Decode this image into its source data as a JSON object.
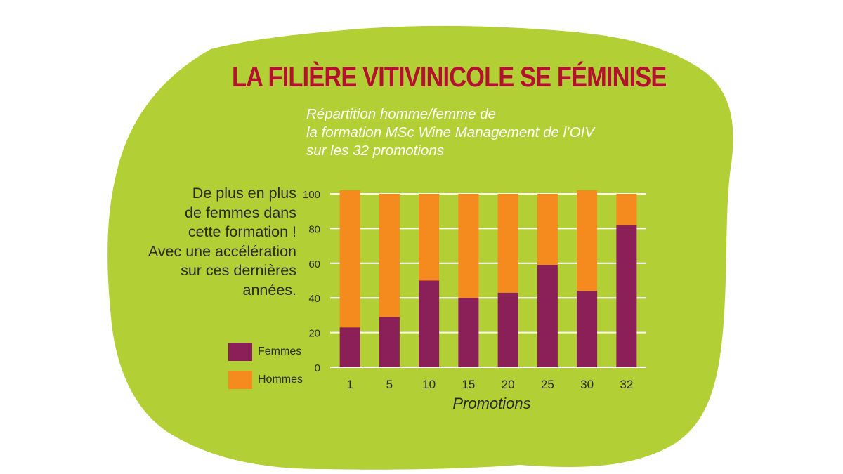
{
  "title": "LA FILIÈRE VITIVINICOLE SE FÉMINISE",
  "subtitle_lines": [
    "Répartition homme/femme de",
    "la formation MSc Wine Management de l’OIV",
    "sur les 32 promotions"
  ],
  "side_note_lines": [
    "De plus en plus",
    "de femmes dans",
    "cette formation !",
    "Avec une accélération",
    "sur ces dernières",
    "années."
  ],
  "colors": {
    "background_blob": "#b2cf36",
    "title": "#b3122e",
    "femmes": "#8b1f57",
    "hommes": "#f58a1f",
    "grid": "#ffffff"
  },
  "chart_data": {
    "type": "bar",
    "stacked": true,
    "categories": [
      "1",
      "5",
      "10",
      "15",
      "20",
      "25",
      "30",
      "32"
    ],
    "series": [
      {
        "name": "Femmes",
        "values": [
          23,
          29,
          50,
          40,
          43,
          59,
          44,
          82
        ]
      },
      {
        "name": "Hommes",
        "values": [
          79,
          71,
          50,
          60,
          57,
          41,
          58,
          18
        ]
      }
    ],
    "xlabel": "Promotions",
    "ylabel": "",
    "ylim": [
      0,
      100
    ],
    "yticks": [
      0,
      20,
      40,
      60,
      80,
      100
    ],
    "grid": true,
    "legend_position": "left"
  }
}
